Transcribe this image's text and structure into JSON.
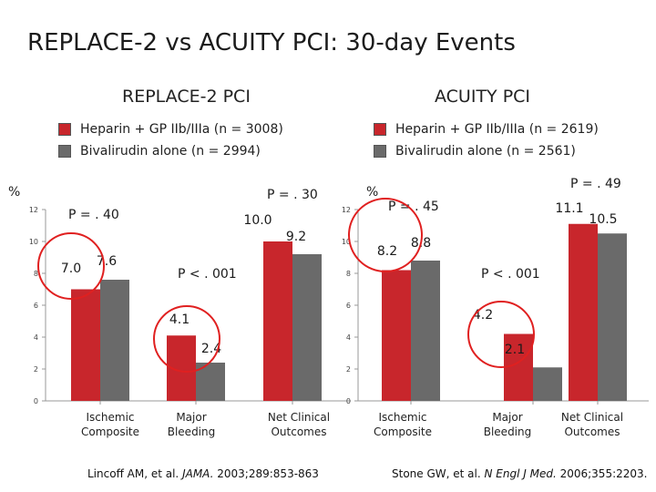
{
  "title": "REPLACE-2 vs ACUITY PCI: 30-day Events",
  "colors": {
    "heparin": "#c8262c",
    "bivalirudin": "#6a6a6a",
    "circle": "#e02020",
    "axis": "#999999"
  },
  "panels": [
    {
      "name": "REPLACE-2 PCI",
      "legend": [
        "Heparin + GP IIb/IIIa (n = 3008)",
        "Bivalirudin alone (n = 2994)"
      ],
      "reference": {
        "authors": "Lincoff AM, et al.",
        "journal": "JAMA.",
        "details": "2003;289:853-863"
      }
    },
    {
      "name": "ACUITY PCI",
      "legend": [
        "Heparin + GP IIb/IIIa (n = 2619)",
        "Bivalirudin alone (n = 2561)"
      ],
      "reference": {
        "authors": "Stone GW, et al.",
        "journal": "N Engl J Med.",
        "details": "2006;355:2203."
      }
    }
  ],
  "chart_data": [
    {
      "type": "bar",
      "title": "REPLACE-2 PCI",
      "ylabel": "%",
      "ylim": [
        0,
        12
      ],
      "yticks": [
        0,
        2,
        4,
        6,
        8,
        10,
        12
      ],
      "categories": [
        "Ischemic Composite",
        "Major Bleeding",
        "Net Clinical Outcomes"
      ],
      "series": [
        {
          "name": "Heparin + GP IIb/IIIa (n = 3008)",
          "values": [
            7.0,
            4.1,
            10.0
          ],
          "labels": [
            "7.0",
            "4.1",
            "10.0"
          ]
        },
        {
          "name": "Bivalirudin alone (n = 2994)",
          "values": [
            7.6,
            2.4,
            9.2
          ],
          "labels": [
            "7.6",
            "2.4",
            "9.2"
          ]
        }
      ],
      "p_values": [
        "P = . 40",
        "P < . 001",
        "P = . 30"
      ]
    },
    {
      "type": "bar",
      "title": "ACUITY PCI",
      "ylabel": "%",
      "ylim": [
        0,
        12
      ],
      "yticks": [
        0,
        2,
        4,
        6,
        8,
        10,
        12
      ],
      "categories": [
        "Ischemic Composite",
        "Major Bleeding",
        "Net Clinical Outcomes"
      ],
      "series": [
        {
          "name": "Heparin + GP IIb/IIIa (n = 2619)",
          "values": [
            8.2,
            4.2,
            11.1
          ],
          "labels": [
            "8.2",
            "4.2",
            "11.1"
          ]
        },
        {
          "name": "Bivalirudin alone (n = 2561)",
          "values": [
            8.8,
            2.1,
            10.5
          ],
          "labels": [
            "8.8",
            "2.1",
            "10.5"
          ]
        }
      ],
      "p_values": [
        "P = . 45",
        "P < . 001",
        "P = . 49"
      ]
    }
  ]
}
